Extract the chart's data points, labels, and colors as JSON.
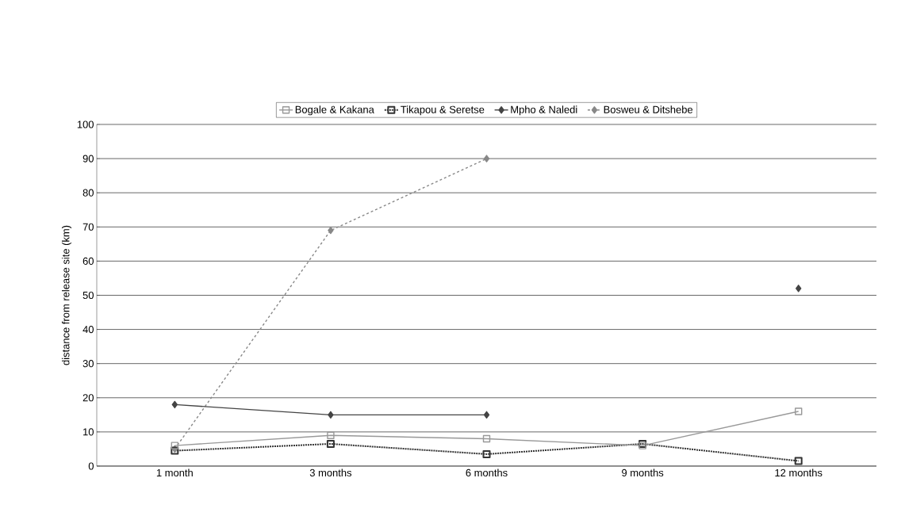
{
  "chart_data": {
    "type": "line",
    "ylabel": "distance from release site (km)",
    "categories": [
      "1 month",
      "3 months",
      "6 months",
      "9 months",
      "12 months"
    ],
    "series": [
      {
        "name": "Bogale & Kakana",
        "color": "#999999",
        "marker": "square",
        "line_style": "solid",
        "values": [
          6,
          9,
          8,
          6,
          16
        ]
      },
      {
        "name": "Tikapou & Seretse",
        "color": "#333333",
        "marker": "square",
        "line_style": "dotted",
        "values": [
          4.5,
          6.5,
          3.5,
          6.5,
          1.5
        ]
      },
      {
        "name": "Mpho & Naledi",
        "color": "#444444",
        "marker": "diamond",
        "line_style": "solid",
        "values": [
          18,
          15,
          15,
          null,
          52
        ]
      },
      {
        "name": "Bosweu & Ditshebe",
        "color": "#888888",
        "marker": "diamond",
        "line_style": "dashed",
        "values": [
          5,
          69,
          90,
          null,
          null
        ]
      }
    ],
    "ylim": [
      0,
      100
    ],
    "yticks": [
      0,
      10,
      20,
      30,
      40,
      50,
      60,
      70,
      80,
      90,
      100
    ],
    "grid": "y",
    "legend": "top"
  }
}
